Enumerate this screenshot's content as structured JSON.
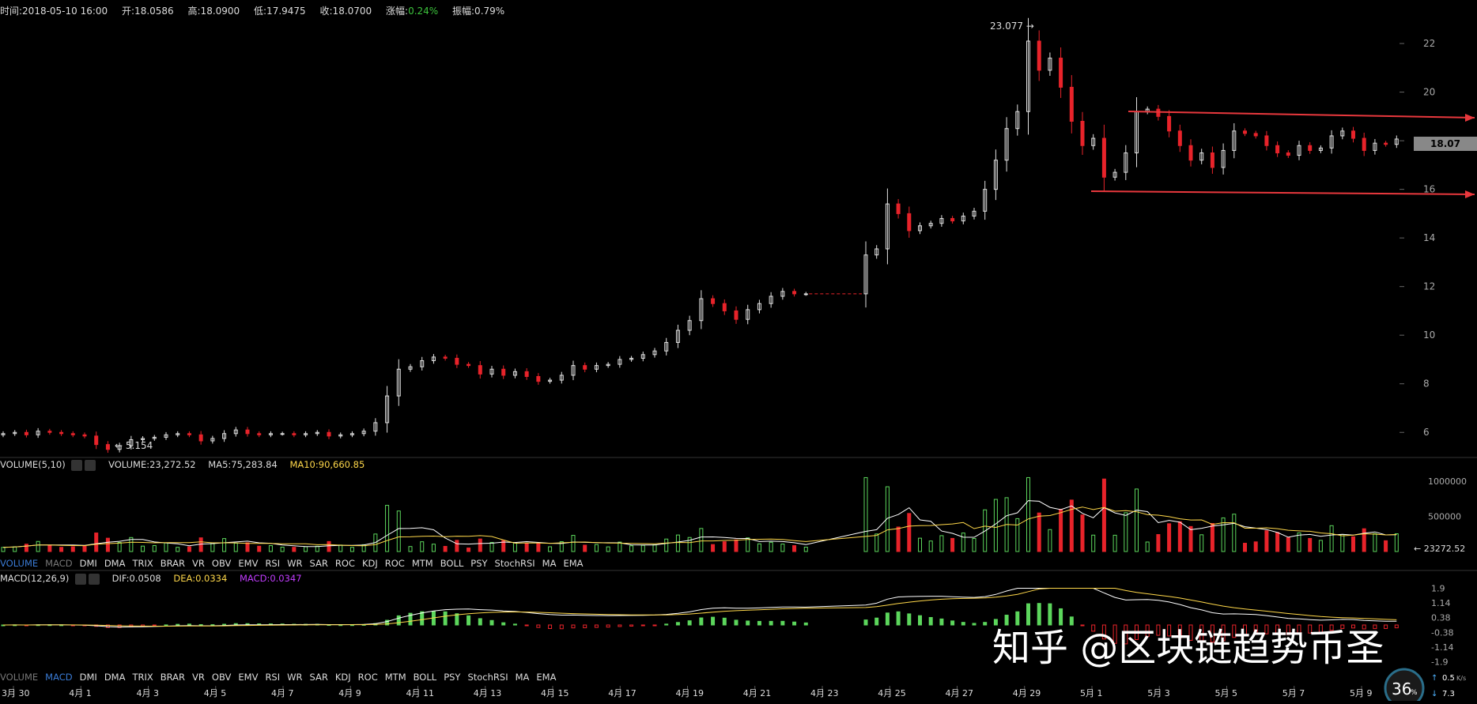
{
  "info": {
    "time": "时间:2018-05-10 16:00",
    "open": "开:18.0586",
    "high": "高:18.0900",
    "low": "低:17.9475",
    "close": "收:18.0700",
    "change_label": "涨幅:",
    "change_value": "0.24%",
    "amp": "振幅:0.79%"
  },
  "volume_legend": {
    "title": "VOLUME(5,10)",
    "volume": "VOLUME:23,272.52",
    "ma5": "MA5:75,283.84",
    "ma10": "MA10:90,660.85"
  },
  "macd_legend": {
    "title": "MACD(12,26,9)",
    "dif": "DIF:0.0508",
    "dea": "DEA:0.0334",
    "macd": "MACD:0.0347"
  },
  "indicator_tabs_1": [
    "VOLUME",
    "MACD",
    "DMI",
    "DMA",
    "TRIX",
    "BRAR",
    "VR",
    "OBV",
    "EMV",
    "RSI",
    "WR",
    "SAR",
    "ROC",
    "KDJ",
    "ROC",
    "MTM",
    "BOLL",
    "PSY",
    "StochRSI",
    "MA",
    "EMA"
  ],
  "indicator_tabs_2": [
    "VOLUME",
    "MACD",
    "DMI",
    "DMA",
    "TRIX",
    "BRAR",
    "VR",
    "OBV",
    "EMV",
    "RSI",
    "WR",
    "SAR",
    "KDJ",
    "ROC",
    "MTM",
    "BOLL",
    "PSY",
    "StochRSI",
    "MA",
    "EMA"
  ],
  "price_tag": "18.07",
  "vol_tag": "← 23272.52",
  "watermark": "知乎 @区块链趋势币圣",
  "speed": {
    "percent": "36",
    "pct_sign": "%",
    "up": "0.5",
    "up_unit": "K/s",
    "down": "7.3"
  },
  "colors": {
    "up": "#e0e0e0",
    "down": "#e8232a",
    "green": "#5cd65c",
    "red": "#e8232a",
    "trend": "#e8383d"
  },
  "chart_data": {
    "type": "candlestick",
    "y_ticks": [
      6,
      8,
      10,
      12,
      14,
      16,
      18,
      20,
      22
    ],
    "ylim": [
      5,
      23.4
    ],
    "annotations": {
      "high": "23.077",
      "low": "5.154"
    },
    "x_tick_labels": [
      "3月 30",
      "4月 1",
      "4月 3",
      "4月 5",
      "4月 7",
      "4月 9",
      "4月 11",
      "4月 13",
      "4月 15",
      "4月 17",
      "4月 19",
      "4月 21",
      "4月 23",
      "4月 25",
      "4月 27",
      "4月 29",
      "5月 1",
      "5月 3",
      "5月 5",
      "5月 7",
      "5月 9"
    ],
    "close_series": [
      5.95,
      6.0,
      5.9,
      6.05,
      6.0,
      5.95,
      5.9,
      5.85,
      5.5,
      5.3,
      5.45,
      5.7,
      5.75,
      5.8,
      5.9,
      5.95,
      5.9,
      5.65,
      5.75,
      5.95,
      6.1,
      5.95,
      5.9,
      5.95,
      5.95,
      5.9,
      5.95,
      6.0,
      5.85,
      5.9,
      5.95,
      6.05,
      6.4,
      7.5,
      8.6,
      8.7,
      8.95,
      9.1,
      9.05,
      8.8,
      8.75,
      8.4,
      8.6,
      8.35,
      8.5,
      8.3,
      8.1,
      8.15,
      8.35,
      8.75,
      8.6,
      8.75,
      8.8,
      9.0,
      9.05,
      9.2,
      9.35,
      9.7,
      10.2,
      10.6,
      11.5,
      11.3,
      11.0,
      10.65,
      11.05,
      11.3,
      11.6,
      11.8,
      11.7,
      11.7,
      13.3,
      13.55,
      15.4,
      15.0,
      14.3,
      14.5,
      14.6,
      14.8,
      14.7,
      14.9,
      15.1,
      16.0,
      17.2,
      18.5,
      19.2,
      22.1,
      20.9,
      21.4,
      20.2,
      18.8,
      17.8,
      18.1,
      16.5,
      16.7,
      17.5,
      19.2,
      19.3,
      19.0,
      18.4,
      17.8,
      17.2,
      17.5,
      16.9,
      17.6,
      18.4,
      18.3,
      18.2,
      17.8,
      17.5,
      17.4,
      17.8,
      17.6,
      17.7,
      18.2,
      18.4,
      18.1,
      17.6,
      17.9,
      17.85,
      18.07
    ],
    "volume_ticks": [
      "1000000",
      "500000"
    ],
    "macd_ticks": [
      "1.9",
      "1.14",
      "0.38",
      "-0.38",
      "-1.14",
      "-1.9"
    ]
  }
}
